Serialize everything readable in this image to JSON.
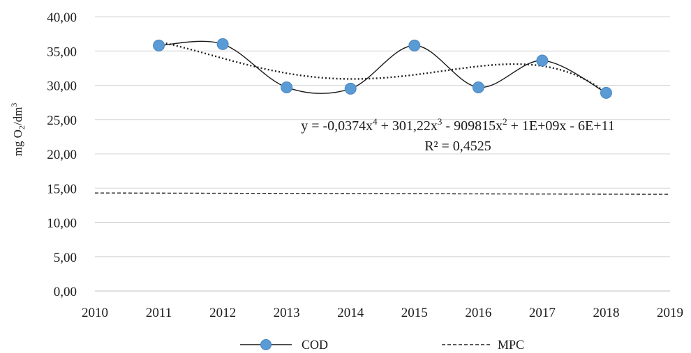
{
  "chart_data": {
    "type": "line",
    "title": "",
    "xlabel": "",
    "ylabel": {
      "main": "mg O",
      "sub": "2",
      "mid": "/dm",
      "sup": "3"
    },
    "xlim": [
      2010,
      2019
    ],
    "ylim": [
      0,
      40
    ],
    "x_ticks": [
      2010,
      2011,
      2012,
      2013,
      2014,
      2015,
      2016,
      2017,
      2018,
      2019
    ],
    "x_tick_labels": [
      "2010",
      "2011",
      "2012",
      "2013",
      "2014",
      "2015",
      "2016",
      "2017",
      "2018",
      "2019"
    ],
    "y_ticks": [
      0,
      5,
      10,
      15,
      20,
      25,
      30,
      35,
      40
    ],
    "y_tick_labels": [
      "0,00",
      "5,00",
      "10,00",
      "15,00",
      "20,00",
      "25,00",
      "30,00",
      "35,00",
      "40,00"
    ],
    "grid": "horizontal",
    "legend_position": "bottom",
    "series": [
      {
        "name": "COD",
        "style": "smooth-line-with-markers",
        "color": "#5b9bd5",
        "x": [
          2011,
          2012,
          2013,
          2014,
          2015,
          2016,
          2017,
          2018
        ],
        "values": [
          35.8,
          36.0,
          29.7,
          29.5,
          35.8,
          29.7,
          33.6,
          28.9
        ]
      },
      {
        "name": "MPC",
        "style": "dashed",
        "color": "#222222",
        "x": [
          2010,
          2019
        ],
        "values": [
          14.3,
          14.1
        ]
      }
    ],
    "trendline": {
      "type": "polynomial",
      "order": 4,
      "equation": {
        "p1": "y = -0,0374x",
        "e1": "4",
        "p2": " + 301,22x",
        "e2": "3",
        "p3": " - 909815x",
        "e3": "2",
        "p4": " + 1E+09x - 6E+11"
      },
      "r_squared_label": "R² = 0,4525"
    }
  }
}
